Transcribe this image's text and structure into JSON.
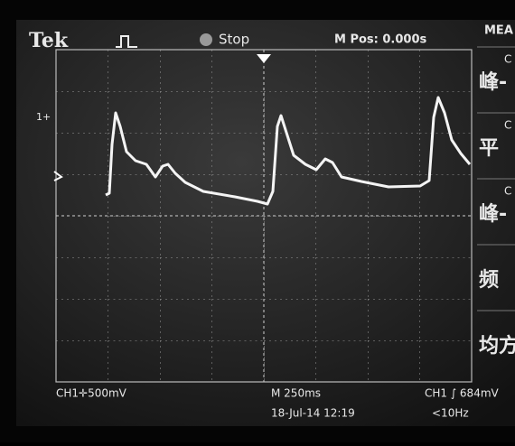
{
  "header": {
    "brand": "Tek",
    "state": "Stop",
    "position": "M Pos: 0.000s",
    "menu_title": "MEA"
  },
  "channel_marker": "1+",
  "side_menu": [
    {
      "source": "C",
      "label": "峰-"
    },
    {
      "source": "C",
      "label": "平"
    },
    {
      "source": "C",
      "label": "峰-"
    },
    {
      "source": "",
      "label": "频"
    },
    {
      "source": "",
      "label": "均方"
    }
  ],
  "footer": {
    "channel_scale": "CH1✛500mV",
    "timebase": "M 250ms",
    "trigger": "CH1 ∫ 684mV",
    "date": "18-Jul-14 12:19",
    "frequency": "<10Hz"
  }
}
